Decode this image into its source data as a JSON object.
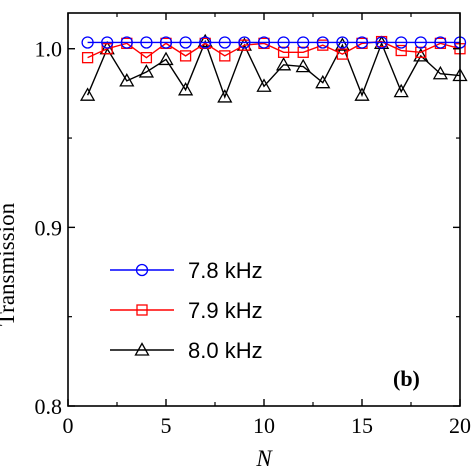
{
  "chart_data": {
    "type": "line",
    "title": "",
    "xlabel": "N",
    "ylabel": "Transmission",
    "panel_label": "(b)",
    "xlim": [
      0,
      20
    ],
    "ylim": [
      0.8,
      1.02
    ],
    "xticks": [
      0,
      5,
      10,
      15,
      20
    ],
    "xtick_labels": [
      "0",
      "5",
      "10",
      "15",
      "20"
    ],
    "yticks": [
      0.8,
      0.9,
      1.0
    ],
    "ytick_labels": [
      "0.8",
      "0.9",
      "1.0"
    ],
    "grid": false,
    "legend_position": "lower-left",
    "x": [
      1,
      2,
      3,
      4,
      5,
      6,
      7,
      8,
      9,
      10,
      11,
      12,
      13,
      14,
      15,
      16,
      17,
      18,
      19,
      20
    ],
    "series": [
      {
        "name": "7.8 kHz",
        "color": "#0000ff",
        "marker": "circle",
        "values": [
          1.0035,
          1.0035,
          1.0035,
          1.0035,
          1.0035,
          1.0035,
          1.0035,
          1.0035,
          1.0035,
          1.0035,
          1.0035,
          1.0035,
          1.0035,
          1.0035,
          1.0035,
          1.0035,
          1.0035,
          1.0035,
          1.0035,
          1.0035
        ]
      },
      {
        "name": "7.9 kHz",
        "color": "#ff0000",
        "marker": "square",
        "values": [
          0.995,
          1.0,
          1.003,
          0.995,
          1.003,
          0.996,
          1.003,
          0.996,
          1.002,
          1.003,
          0.998,
          0.998,
          1.002,
          0.997,
          1.003,
          1.004,
          0.999,
          0.998,
          1.003,
          1.0
        ]
      },
      {
        "name": "8.0 kHz",
        "color": "#000000",
        "marker": "triangle",
        "values": [
          0.974,
          1.0,
          0.982,
          0.987,
          0.994,
          0.977,
          1.004,
          0.973,
          1.002,
          0.979,
          0.991,
          0.99,
          0.981,
          1.002,
          0.974,
          1.003,
          0.976,
          0.996,
          0.986,
          0.985
        ]
      }
    ]
  }
}
